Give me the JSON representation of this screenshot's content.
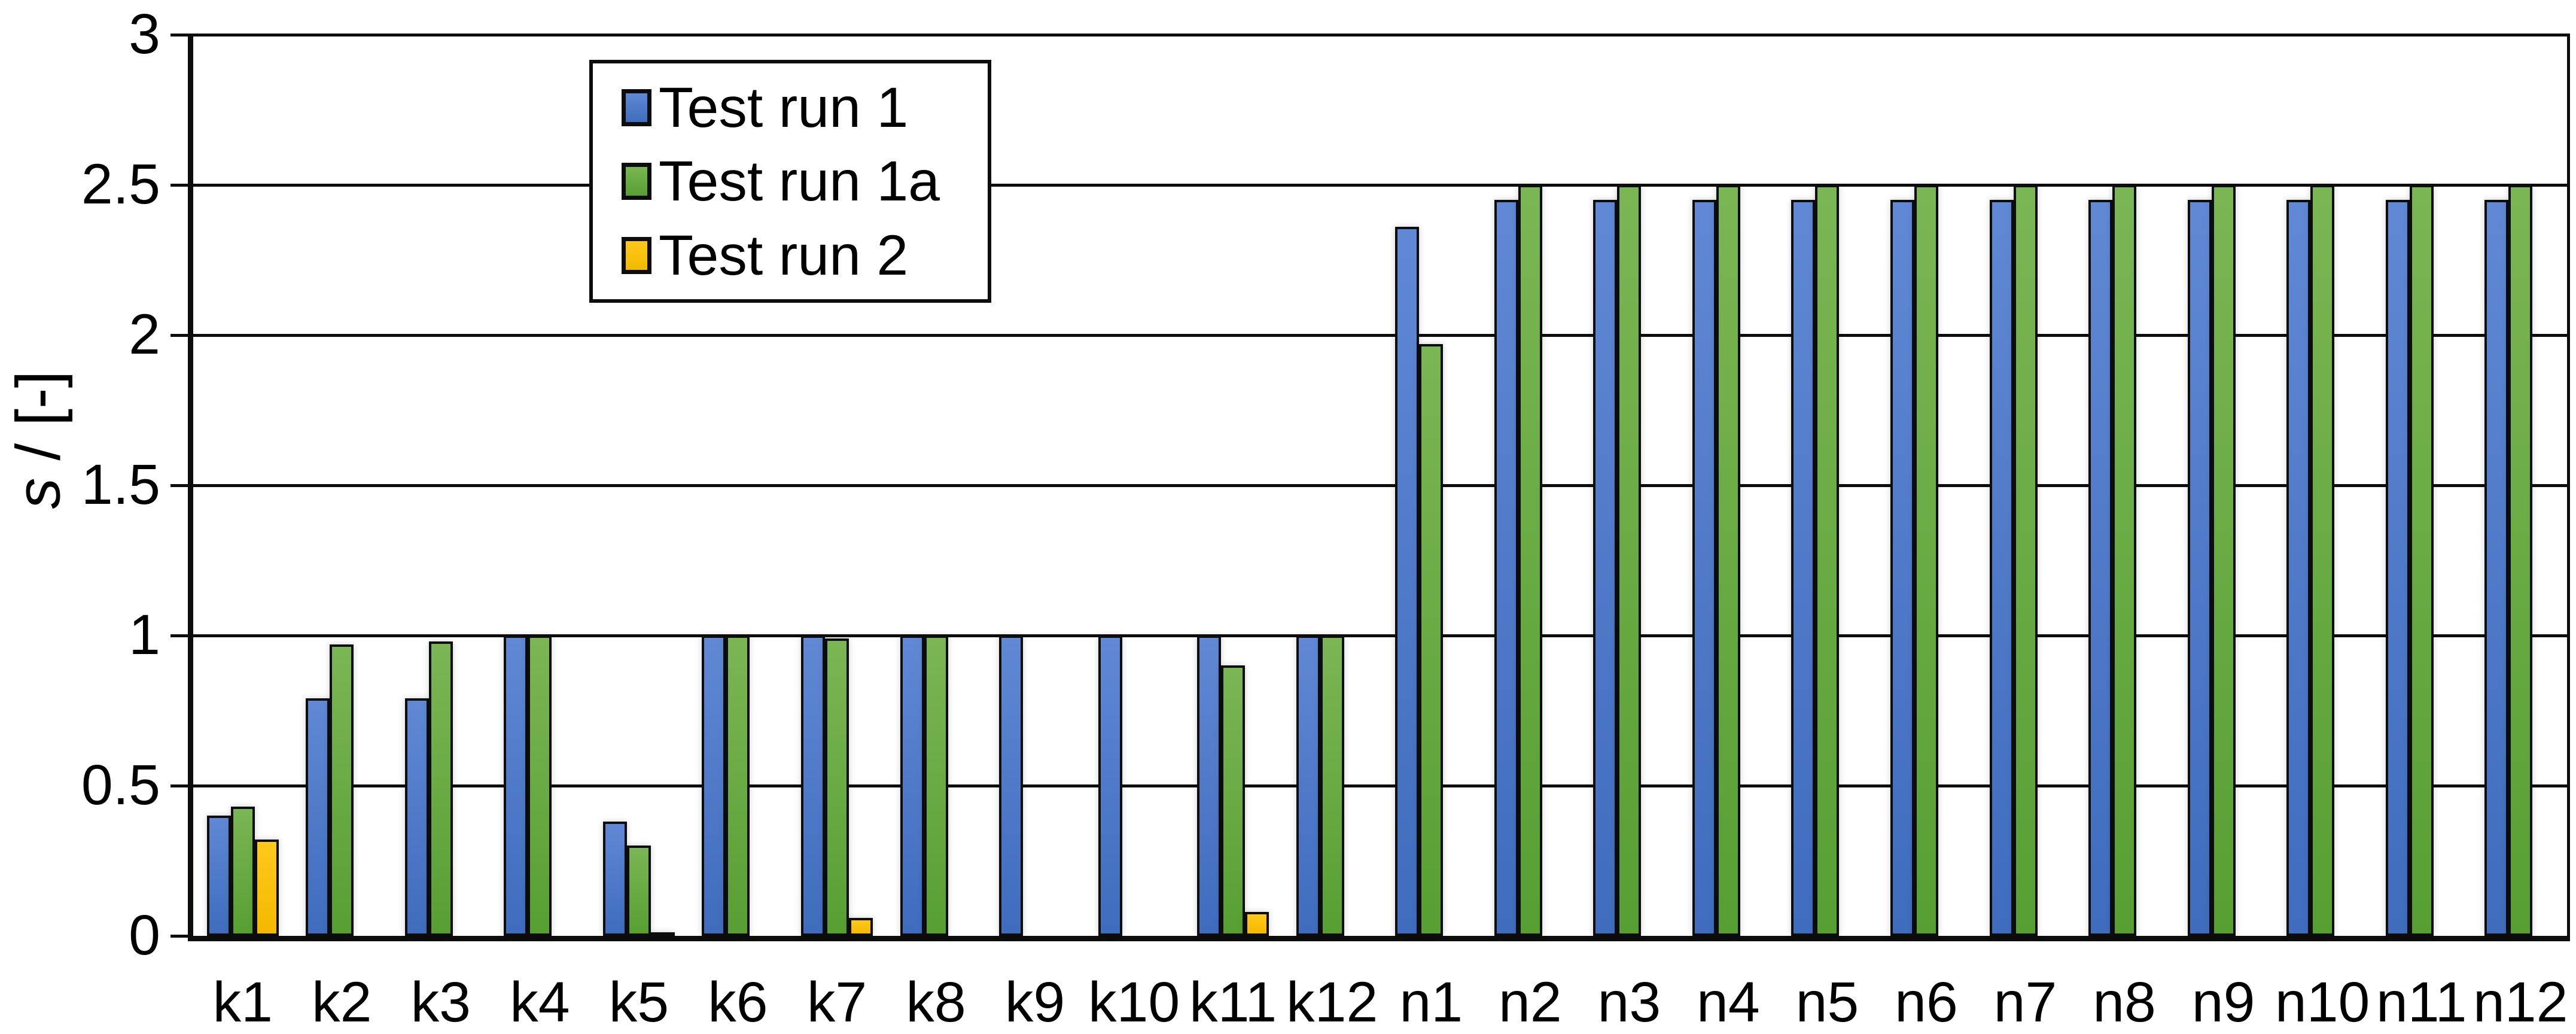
{
  "chart_data": {
    "type": "bar",
    "title": "",
    "xlabel": "",
    "ylabel": "s / [-]",
    "ylabel_var": "s",
    "ylabel_unit": " / [-]",
    "ylim": [
      0,
      3
    ],
    "ytick_step": 0.5,
    "yticks": [
      "0",
      "0.5",
      "1",
      "1.5",
      "2",
      "2.5",
      "3"
    ],
    "grid": "horizontal-black",
    "legend_position": "inside-top-left",
    "categories": [
      "k1",
      "k2",
      "k3",
      "k4",
      "k5",
      "k6",
      "k7",
      "k8",
      "k9",
      "k10",
      "k11",
      "k12",
      "n1",
      "n2",
      "n3",
      "n4",
      "n5",
      "n6",
      "n7",
      "n8",
      "n9",
      "n10",
      "n11",
      "n12"
    ],
    "series": [
      {
        "name": "Test run 1",
        "color": "#4472C4",
        "values": [
          0.4,
          0.79,
          0.79,
          1.0,
          0.38,
          1.0,
          1.0,
          1.0,
          1.0,
          1.0,
          1.0,
          1.0,
          2.36,
          2.45,
          2.45,
          2.45,
          2.45,
          2.45,
          2.45,
          2.45,
          2.45,
          2.45,
          2.45,
          2.45
        ]
      },
      {
        "name": "Test run 1a",
        "color": "#70AD47",
        "values": [
          0.43,
          0.97,
          0.98,
          1.0,
          0.3,
          1.0,
          0.99,
          1.0,
          null,
          null,
          0.9,
          1.0,
          1.97,
          2.5,
          2.5,
          2.5,
          2.5,
          2.5,
          2.5,
          2.5,
          2.5,
          2.5,
          2.5,
          2.5
        ]
      },
      {
        "name": "Test run 2",
        "color": "#FFC000",
        "values": [
          0.32,
          null,
          null,
          null,
          0.01,
          null,
          0.06,
          null,
          null,
          null,
          0.08,
          null,
          null,
          null,
          null,
          null,
          null,
          null,
          null,
          null,
          null,
          null,
          null,
          null
        ]
      }
    ]
  }
}
